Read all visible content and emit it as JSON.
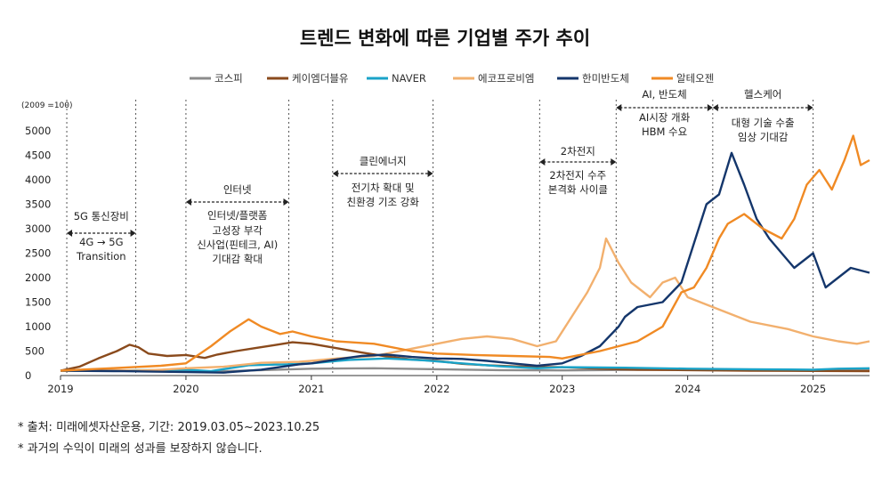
{
  "chart_data": {
    "type": "line",
    "title": "트렌드 변화에 따른 기업별 주가 추이",
    "unit_label": "(2009 =100)",
    "xlabel": "",
    "ylabel": "",
    "x_range": [
      2019.0,
      2025.45
    ],
    "ylim": [
      0,
      5000
    ],
    "y_ticks": [
      0,
      500,
      1000,
      1500,
      2000,
      2500,
      3000,
      3500,
      4000,
      4500,
      5000
    ],
    "x_ticks": [
      2019,
      2020,
      2021,
      2022,
      2023,
      2024,
      2025
    ],
    "x_tick_labels": [
      "2019",
      "2020",
      "2021",
      "2022",
      "2023",
      "2024",
      "2025"
    ],
    "series": [
      {
        "name": "코스피",
        "color": "#8c8c8c",
        "x": [
          2019.0,
          2019.5,
          2020.0,
          2020.2,
          2020.6,
          2021.0,
          2021.5,
          2022.0,
          2022.5,
          2023.0,
          2023.5,
          2024.0,
          2024.5,
          2025.0,
          2025.45
        ],
        "y": [
          100,
          100,
          105,
          80,
          110,
          140,
          150,
          130,
          110,
          105,
          115,
          120,
          120,
          115,
          125
        ]
      },
      {
        "name": "케이엠더블유",
        "color": "#8a4a1c",
        "x": [
          2019.0,
          2019.15,
          2019.3,
          2019.45,
          2019.55,
          2019.62,
          2019.7,
          2019.85,
          2020.0,
          2020.15,
          2020.25,
          2020.4,
          2020.55,
          2020.7,
          2020.85,
          2021.0,
          2021.2,
          2021.4,
          2021.6,
          2021.8,
          2022.0,
          2022.2,
          2022.4,
          2022.6,
          2022.8,
          2023.0,
          2023.3,
          2023.6,
          2024.0,
          2024.5,
          2025.0,
          2025.45
        ],
        "y": [
          100,
          180,
          350,
          500,
          630,
          580,
          450,
          400,
          420,
          360,
          430,
          500,
          560,
          620,
          680,
          650,
          560,
          470,
          390,
          330,
          300,
          240,
          210,
          190,
          175,
          170,
          140,
          120,
          110,
          100,
          95,
          90
        ]
      },
      {
        "name": "NAVER",
        "color": "#1aa3c8",
        "x": [
          2019.0,
          2019.5,
          2020.0,
          2020.2,
          2020.5,
          2020.8,
          2021.0,
          2021.3,
          2021.6,
          2021.9,
          2022.2,
          2022.5,
          2022.8,
          2023.0,
          2023.5,
          2024.0,
          2024.5,
          2025.0,
          2025.2,
          2025.45
        ],
        "y": [
          100,
          105,
          120,
          90,
          210,
          230,
          250,
          320,
          350,
          310,
          250,
          190,
          150,
          170,
          160,
          140,
          130,
          120,
          140,
          150
        ]
      },
      {
        "name": "에코프로비엠",
        "color": "#f2b06e",
        "x": [
          2019.0,
          2019.3,
          2019.6,
          2019.8,
          2020.0,
          2020.3,
          2020.6,
          2020.9,
          2021.0,
          2021.2,
          2021.5,
          2021.8,
          2022.0,
          2022.2,
          2022.4,
          2022.6,
          2022.8,
          2022.95,
          2023.05,
          2023.2,
          2023.3,
          2023.35,
          2023.45,
          2023.55,
          2023.7,
          2023.8,
          2023.9,
          2024.0,
          2024.2,
          2024.5,
          2024.8,
          2025.0,
          2025.2,
          2025.35,
          2025.45
        ],
        "y": [
          100,
          120,
          100,
          120,
          150,
          180,
          260,
          280,
          300,
          350,
          400,
          550,
          650,
          750,
          800,
          750,
          600,
          700,
          1100,
          1700,
          2200,
          2800,
          2300,
          1900,
          1600,
          1900,
          2000,
          1600,
          1400,
          1100,
          950,
          800,
          700,
          650,
          700
        ]
      },
      {
        "name": "한미반도체",
        "color": "#14366b",
        "x": [
          2019.0,
          2019.5,
          2020.0,
          2020.3,
          2020.6,
          2020.9,
          2021.0,
          2021.2,
          2021.4,
          2021.6,
          2021.8,
          2022.0,
          2022.2,
          2022.4,
          2022.6,
          2022.8,
          2023.0,
          2023.15,
          2023.3,
          2023.45,
          2023.5,
          2023.6,
          2023.8,
          2023.95,
          2024.05,
          2024.15,
          2024.25,
          2024.35,
          2024.45,
          2024.55,
          2024.65,
          2024.75,
          2024.85,
          2025.0,
          2025.1,
          2025.2,
          2025.3,
          2025.45
        ],
        "y": [
          100,
          90,
          70,
          60,
          120,
          230,
          250,
          330,
          400,
          430,
          380,
          350,
          340,
          300,
          250,
          200,
          250,
          400,
          600,
          1000,
          1200,
          1400,
          1500,
          1900,
          2700,
          3500,
          3700,
          4550,
          3900,
          3200,
          2800,
          2500,
          2200,
          2500,
          1800,
          2000,
          2200,
          2100
        ]
      },
      {
        "name": "알테오젠",
        "color": "#f08a24",
        "x": [
          2019.0,
          2019.4,
          2019.8,
          2020.0,
          2020.2,
          2020.35,
          2020.5,
          2020.6,
          2020.75,
          2020.85,
          2021.0,
          2021.2,
          2021.5,
          2021.8,
          2022.0,
          2022.3,
          2022.6,
          2022.9,
          2023.0,
          2023.3,
          2023.6,
          2023.8,
          2023.95,
          2024.05,
          2024.15,
          2024.25,
          2024.32,
          2024.45,
          2024.6,
          2024.75,
          2024.85,
          2024.95,
          2025.05,
          2025.15,
          2025.25,
          2025.32,
          2025.38,
          2025.45
        ],
        "y": [
          100,
          150,
          200,
          250,
          600,
          900,
          1150,
          1000,
          850,
          900,
          800,
          700,
          650,
          500,
          450,
          420,
          400,
          380,
          350,
          500,
          700,
          1000,
          1700,
          1800,
          2200,
          2800,
          3100,
          3300,
          3000,
          2800,
          3200,
          3900,
          4200,
          3800,
          4400,
          4900,
          4300,
          4400
        ]
      }
    ],
    "annotations": [
      {
        "header": "5G 통신장비",
        "lines": [
          "4G → 5G",
          "Transition"
        ],
        "x_start": 2019.05,
        "x_end": 2019.6
      },
      {
        "header": "인터넷",
        "lines": [
          "인터넷/플랫폼",
          "고성장 부각",
          "신사업(핀테크, AI)",
          "기대감 확대"
        ],
        "x_start": 2020.0,
        "x_end": 2020.82
      },
      {
        "header": "클린에너지",
        "lines": [
          "전기차 확대 및",
          "친환경 기조 강화"
        ],
        "x_start": 2021.17,
        "x_end": 2021.97
      },
      {
        "header": "2차전지",
        "lines": [
          "2차전지 수주",
          "본격화 사이클"
        ],
        "x_start": 2022.82,
        "x_end": 2023.43
      },
      {
        "header": "AI, 반도체",
        "lines": [
          "AI시장 개화",
          "HBM 수요"
        ],
        "x_start": 2023.43,
        "x_end": 2024.2
      },
      {
        "header": "헬스케어",
        "lines": [
          "대형 기술 수출",
          "임상 기대감"
        ],
        "x_start": 2024.2,
        "x_end": 2025.0
      }
    ]
  },
  "footnotes": [
    "* 출처: 미래에셋자산운용, 기간: 2019.03.05~2023.10.25",
    "* 과거의 수익이 미래의 성과를 보장하지 않습니다."
  ]
}
